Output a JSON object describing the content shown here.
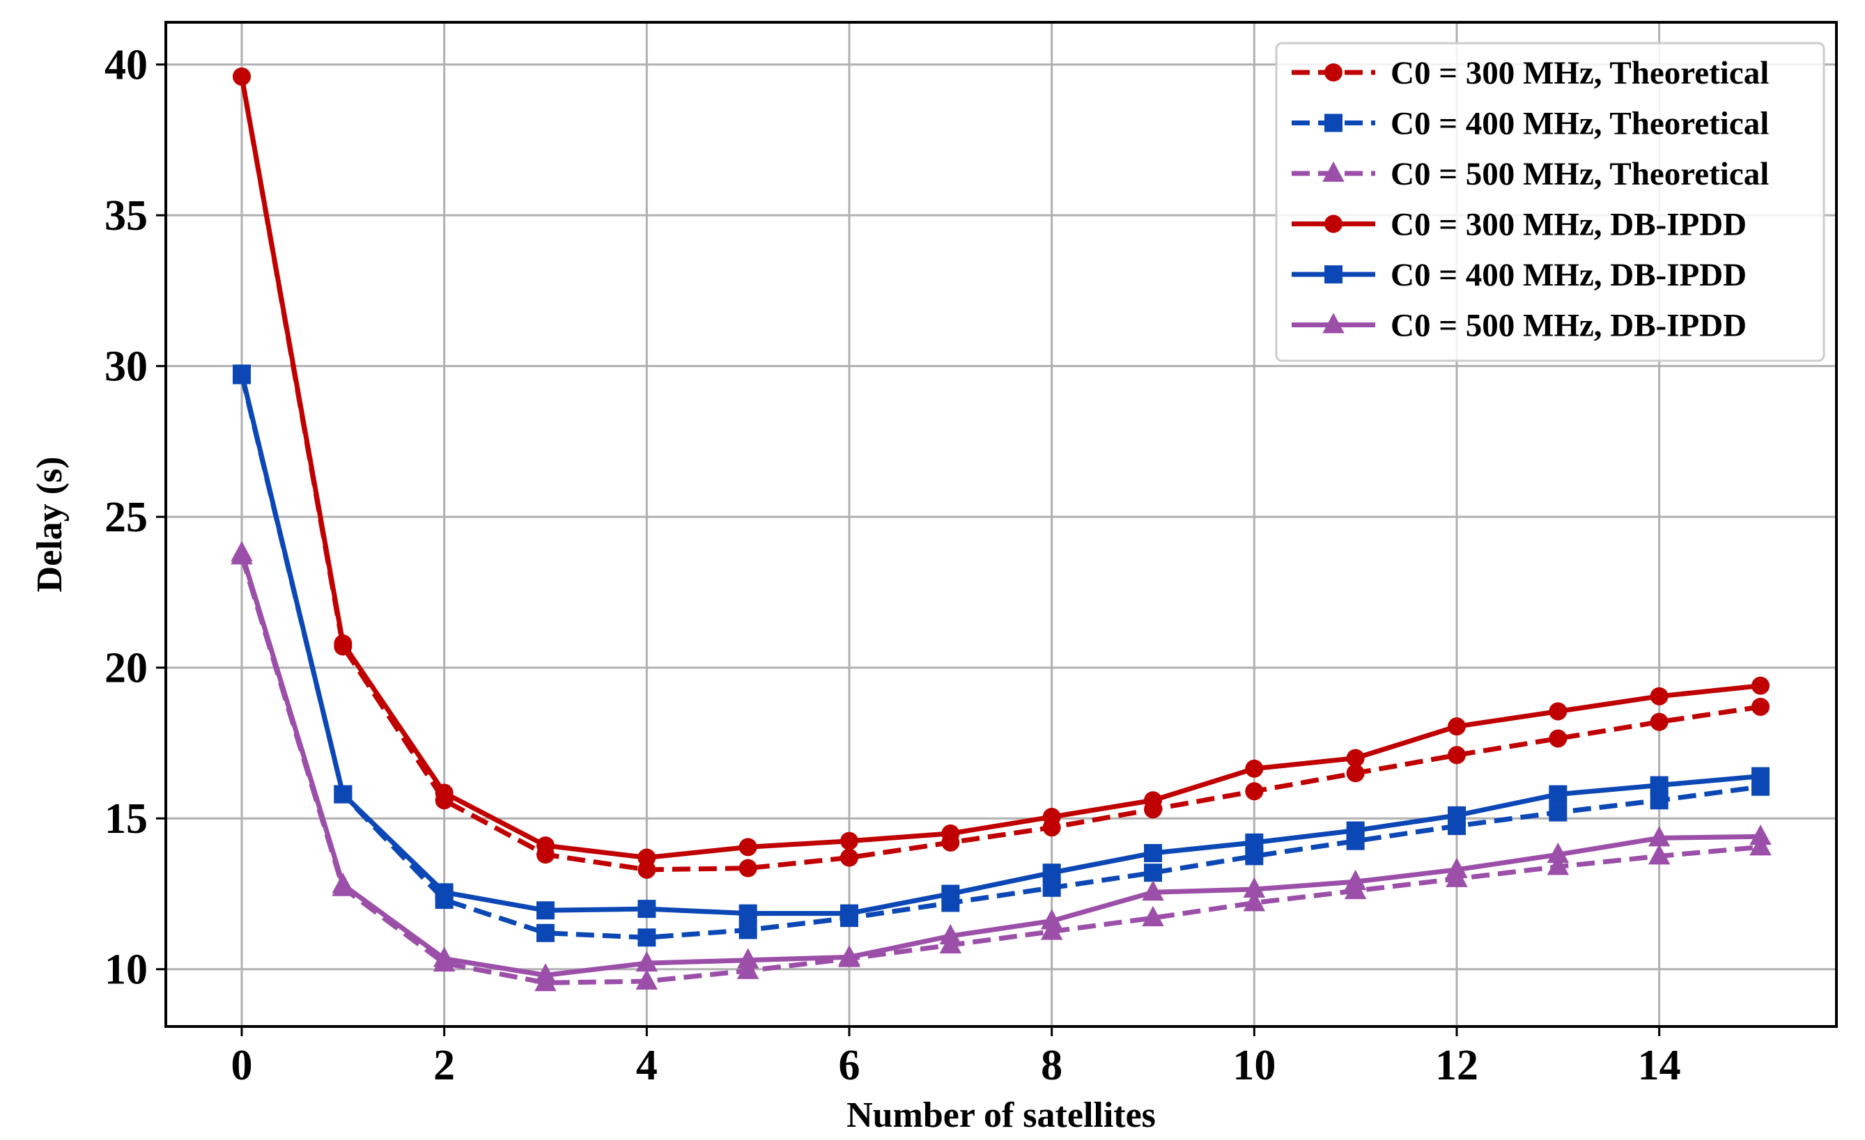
{
  "chart_data": {
    "type": "line",
    "title": "",
    "xlabel": "Number of satellites",
    "ylabel": "Delay (s)",
    "xlim": [
      -0.75,
      15.75
    ],
    "ylim": [
      8.1,
      41.4
    ],
    "xticks": [
      0,
      2,
      4,
      6,
      8,
      10,
      12,
      14
    ],
    "yticks": [
      10,
      15,
      20,
      25,
      30,
      35,
      40
    ],
    "grid": true,
    "legend_position": "top-right",
    "x": [
      0,
      1,
      2,
      3,
      4,
      5,
      6,
      7,
      8,
      9,
      10,
      11,
      12,
      13,
      14,
      15
    ],
    "series": [
      {
        "name": "C0 = 300 MHz, Theoretical",
        "color": "#c00000",
        "dash": "dashed",
        "marker": "circle",
        "values": [
          39.6,
          20.7,
          15.6,
          13.8,
          13.3,
          13.35,
          13.7,
          14.2,
          14.7,
          15.3,
          15.9,
          16.5,
          17.1,
          17.65,
          18.2,
          18.7
        ]
      },
      {
        "name": "C0 = 400 MHz, Theoretical",
        "color": "#0b47b5",
        "dash": "dashed",
        "marker": "square",
        "values": [
          29.7,
          15.8,
          12.3,
          11.2,
          11.05,
          11.3,
          11.7,
          12.2,
          12.7,
          13.2,
          13.75,
          14.25,
          14.75,
          15.2,
          15.6,
          16.05
        ]
      },
      {
        "name": "C0 = 500 MHz, Theoretical",
        "color": "#9b4fa8",
        "dash": "dashed",
        "marker": "triangle",
        "values": [
          23.7,
          12.7,
          10.2,
          9.55,
          9.6,
          9.95,
          10.35,
          10.8,
          11.25,
          11.7,
          12.2,
          12.6,
          13.0,
          13.4,
          13.75,
          14.05
        ]
      },
      {
        "name": "C0 = 300 MHz, DB-IPDD",
        "color": "#c00000",
        "dash": "solid",
        "marker": "circle",
        "values": [
          39.6,
          20.8,
          15.85,
          14.1,
          13.7,
          14.05,
          14.25,
          14.5,
          15.05,
          15.6,
          16.65,
          17.0,
          18.05,
          18.55,
          19.05,
          19.4
        ]
      },
      {
        "name": "C0 = 400 MHz, DB-IPDD",
        "color": "#0b47b5",
        "dash": "solid",
        "marker": "square",
        "values": [
          29.75,
          15.8,
          12.55,
          11.95,
          12.0,
          11.85,
          11.85,
          12.5,
          13.2,
          13.85,
          14.2,
          14.6,
          15.1,
          15.8,
          16.1,
          16.4
        ]
      },
      {
        "name": "C0 = 500 MHz, DB-IPDD",
        "color": "#9b4fa8",
        "dash": "solid",
        "marker": "triangle",
        "values": [
          23.8,
          12.8,
          10.35,
          9.8,
          10.2,
          10.3,
          10.4,
          11.1,
          11.6,
          12.55,
          12.65,
          12.9,
          13.3,
          13.8,
          14.35,
          14.4
        ]
      }
    ]
  }
}
